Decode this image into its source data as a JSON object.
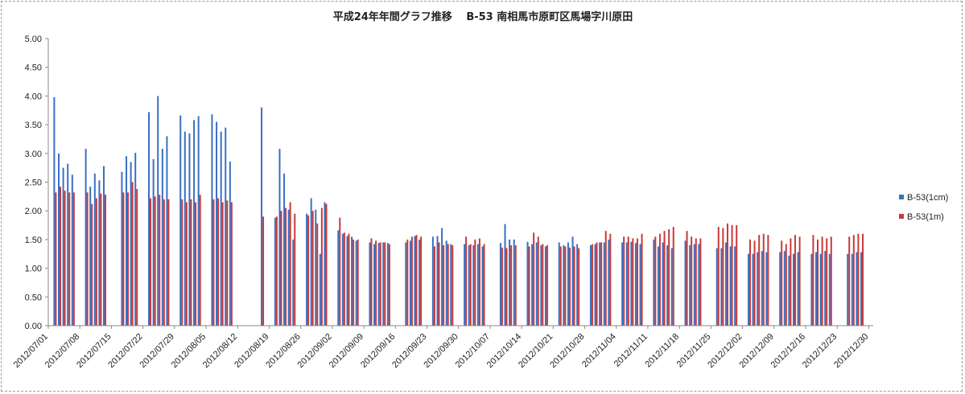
{
  "chart_data": {
    "type": "bar",
    "title": "平成24年年間グラフ推移　 B-53 南相馬市原町区馬場字川原田",
    "xlabel": "",
    "ylabel": "",
    "ylim": [
      0,
      5
    ],
    "yticks": [
      "0.00",
      "0.50",
      "1.00",
      "1.50",
      "2.00",
      "2.50",
      "3.00",
      "3.50",
      "4.00",
      "4.50",
      "5.00"
    ],
    "x_start": "2012-07-01",
    "x_end": "2012-12-31",
    "xtick_labels": [
      "2012/07/01",
      "2012/07/08",
      "2012/07/15",
      "2012/07/22",
      "2012/07/29",
      "2012/08/05",
      "2012/08/12",
      "2012/08/19",
      "2012/08/26",
      "2012/09/02",
      "2012/09/09",
      "2012/09/16",
      "2012/09/23",
      "2012/09/30",
      "2012/10/07",
      "2012/10/14",
      "2012/10/21",
      "2012/10/28",
      "2012/11/04",
      "2012/11/11",
      "2012/11/18",
      "2012/11/25",
      "2012/12/02",
      "2012/12/09",
      "2012/12/16",
      "2012/12/23",
      "2012/12/30"
    ],
    "grid": false,
    "legend_position": "right",
    "series": [
      {
        "name": "B-53(1cm)",
        "color": "#3a70c2",
        "points": [
          [
            "2012-07-02",
            3.98
          ],
          [
            "2012-07-03",
            3.0
          ],
          [
            "2012-07-04",
            2.75
          ],
          [
            "2012-07-05",
            2.82
          ],
          [
            "2012-07-06",
            2.63
          ],
          [
            "2012-07-09",
            3.08
          ],
          [
            "2012-07-10",
            2.42
          ],
          [
            "2012-07-11",
            2.65
          ],
          [
            "2012-07-12",
            2.53
          ],
          [
            "2012-07-13",
            2.78
          ],
          [
            "2012-07-17",
            2.68
          ],
          [
            "2012-07-18",
            2.95
          ],
          [
            "2012-07-19",
            2.85
          ],
          [
            "2012-07-20",
            3.01
          ],
          [
            "2012-07-23",
            3.72
          ],
          [
            "2012-07-24",
            2.9
          ],
          [
            "2012-07-25",
            4.0
          ],
          [
            "2012-07-26",
            3.08
          ],
          [
            "2012-07-27",
            3.3
          ],
          [
            "2012-07-30",
            3.66
          ],
          [
            "2012-07-31",
            3.38
          ],
          [
            "2012-08-01",
            3.35
          ],
          [
            "2012-08-02",
            3.58
          ],
          [
            "2012-08-03",
            3.65
          ],
          [
            "2012-08-06",
            3.68
          ],
          [
            "2012-08-07",
            3.55
          ],
          [
            "2012-08-08",
            3.38
          ],
          [
            "2012-08-09",
            3.45
          ],
          [
            "2012-08-10",
            2.86
          ],
          [
            "2012-08-17",
            3.8
          ],
          [
            "2012-08-20",
            1.88
          ],
          [
            "2012-08-21",
            3.08
          ],
          [
            "2012-08-22",
            2.65
          ],
          [
            "2012-08-23",
            2.02
          ],
          [
            "2012-08-24",
            1.5
          ],
          [
            "2012-08-27",
            1.95
          ],
          [
            "2012-08-28",
            2.22
          ],
          [
            "2012-08-29",
            2.02
          ],
          [
            "2012-08-30",
            1.25
          ],
          [
            "2012-08-31",
            2.15
          ],
          [
            "2012-09-03",
            1.66
          ],
          [
            "2012-09-04",
            1.6
          ],
          [
            "2012-09-05",
            1.56
          ],
          [
            "2012-09-06",
            1.55
          ],
          [
            "2012-09-07",
            1.48
          ],
          [
            "2012-09-10",
            1.45
          ],
          [
            "2012-09-11",
            1.42
          ],
          [
            "2012-09-12",
            1.44
          ],
          [
            "2012-09-13",
            1.45
          ],
          [
            "2012-09-14",
            1.44
          ],
          [
            "2012-09-18",
            1.45
          ],
          [
            "2012-09-19",
            1.48
          ],
          [
            "2012-09-20",
            1.56
          ],
          [
            "2012-09-21",
            1.5
          ],
          [
            "2012-09-24",
            1.55
          ],
          [
            "2012-09-25",
            1.56
          ],
          [
            "2012-09-26",
            1.7
          ],
          [
            "2012-09-27",
            1.48
          ],
          [
            "2012-09-28",
            1.42
          ],
          [
            "2012-10-01",
            1.42
          ],
          [
            "2012-10-02",
            1.4
          ],
          [
            "2012-10-03",
            1.4
          ],
          [
            "2012-10-04",
            1.42
          ],
          [
            "2012-10-05",
            1.38
          ],
          [
            "2012-10-09",
            1.44
          ],
          [
            "2012-10-10",
            1.77
          ],
          [
            "2012-10-11",
            1.5
          ],
          [
            "2012-10-12",
            1.5
          ],
          [
            "2012-10-15",
            1.46
          ],
          [
            "2012-10-16",
            1.42
          ],
          [
            "2012-10-17",
            1.45
          ],
          [
            "2012-10-18",
            1.4
          ],
          [
            "2012-10-19",
            1.38
          ],
          [
            "2012-10-22",
            1.45
          ],
          [
            "2012-10-23",
            1.4
          ],
          [
            "2012-10-24",
            1.45
          ],
          [
            "2012-10-25",
            1.55
          ],
          [
            "2012-10-26",
            1.42
          ],
          [
            "2012-10-29",
            1.4
          ],
          [
            "2012-10-30",
            1.42
          ],
          [
            "2012-10-31",
            1.45
          ],
          [
            "2012-11-01",
            1.45
          ],
          [
            "2012-11-02",
            1.5
          ],
          [
            "2012-11-05",
            1.45
          ],
          [
            "2012-11-06",
            1.45
          ],
          [
            "2012-11-07",
            1.46
          ],
          [
            "2012-11-08",
            1.44
          ],
          [
            "2012-11-09",
            1.42
          ],
          [
            "2012-11-12",
            1.5
          ],
          [
            "2012-11-13",
            1.38
          ],
          [
            "2012-11-14",
            1.45
          ],
          [
            "2012-11-15",
            1.4
          ],
          [
            "2012-11-16",
            1.35
          ],
          [
            "2012-11-19",
            1.48
          ],
          [
            "2012-11-20",
            1.4
          ],
          [
            "2012-11-21",
            1.42
          ],
          [
            "2012-11-22",
            1.42
          ],
          [
            "2012-11-26",
            1.35
          ],
          [
            "2012-11-27",
            1.35
          ],
          [
            "2012-11-28",
            1.45
          ],
          [
            "2012-11-29",
            1.38
          ],
          [
            "2012-11-30",
            1.38
          ],
          [
            "2012-12-03",
            1.25
          ],
          [
            "2012-12-04",
            1.25
          ],
          [
            "2012-12-05",
            1.28
          ],
          [
            "2012-12-06",
            1.3
          ],
          [
            "2012-12-07",
            1.28
          ],
          [
            "2012-12-10",
            1.28
          ],
          [
            "2012-12-11",
            1.3
          ],
          [
            "2012-12-12",
            1.22
          ],
          [
            "2012-12-13",
            1.25
          ],
          [
            "2012-12-14",
            1.28
          ],
          [
            "2012-12-17",
            1.25
          ],
          [
            "2012-12-18",
            1.28
          ],
          [
            "2012-12-19",
            1.25
          ],
          [
            "2012-12-20",
            1.3
          ],
          [
            "2012-12-21",
            1.25
          ],
          [
            "2012-12-25",
            1.25
          ],
          [
            "2012-12-26",
            1.25
          ],
          [
            "2012-12-27",
            1.28
          ],
          [
            "2012-12-28",
            1.28
          ]
        ]
      },
      {
        "name": "B-53(1m)",
        "color": "#c83a3a",
        "points": [
          [
            "2012-07-02",
            2.32
          ],
          [
            "2012-07-03",
            2.42
          ],
          [
            "2012-07-04",
            2.35
          ],
          [
            "2012-07-05",
            2.32
          ],
          [
            "2012-07-06",
            2.32
          ],
          [
            "2012-07-09",
            2.32
          ],
          [
            "2012-07-10",
            2.12
          ],
          [
            "2012-07-11",
            2.22
          ],
          [
            "2012-07-12",
            2.3
          ],
          [
            "2012-07-13",
            2.28
          ],
          [
            "2012-07-17",
            2.32
          ],
          [
            "2012-07-18",
            2.32
          ],
          [
            "2012-07-19",
            2.5
          ],
          [
            "2012-07-20",
            2.38
          ],
          [
            "2012-07-23",
            2.22
          ],
          [
            "2012-07-24",
            2.25
          ],
          [
            "2012-07-25",
            2.28
          ],
          [
            "2012-07-26",
            2.2
          ],
          [
            "2012-07-27",
            2.2
          ],
          [
            "2012-07-30",
            2.2
          ],
          [
            "2012-07-31",
            2.15
          ],
          [
            "2012-08-01",
            2.2
          ],
          [
            "2012-08-02",
            2.15
          ],
          [
            "2012-08-03",
            2.28
          ],
          [
            "2012-08-06",
            2.2
          ],
          [
            "2012-08-07",
            2.22
          ],
          [
            "2012-08-08",
            2.15
          ],
          [
            "2012-08-09",
            2.18
          ],
          [
            "2012-08-10",
            2.15
          ],
          [
            "2012-08-17",
            1.9
          ],
          [
            "2012-08-20",
            1.9
          ],
          [
            "2012-08-21",
            2.0
          ],
          [
            "2012-08-22",
            2.05
          ],
          [
            "2012-08-23",
            2.15
          ],
          [
            "2012-08-24",
            1.95
          ],
          [
            "2012-08-27",
            1.92
          ],
          [
            "2012-08-28",
            2.0
          ],
          [
            "2012-08-29",
            1.78
          ],
          [
            "2012-08-30",
            2.05
          ],
          [
            "2012-08-31",
            2.12
          ],
          [
            "2012-09-03",
            1.88
          ],
          [
            "2012-09-04",
            1.62
          ],
          [
            "2012-09-05",
            1.6
          ],
          [
            "2012-09-06",
            1.5
          ],
          [
            "2012-09-07",
            1.5
          ],
          [
            "2012-09-10",
            1.52
          ],
          [
            "2012-09-11",
            1.48
          ],
          [
            "2012-09-12",
            1.45
          ],
          [
            "2012-09-13",
            1.45
          ],
          [
            "2012-09-14",
            1.42
          ],
          [
            "2012-09-18",
            1.5
          ],
          [
            "2012-09-19",
            1.55
          ],
          [
            "2012-09-20",
            1.58
          ],
          [
            "2012-09-21",
            1.55
          ],
          [
            "2012-09-24",
            1.38
          ],
          [
            "2012-09-25",
            1.45
          ],
          [
            "2012-09-26",
            1.4
          ],
          [
            "2012-09-27",
            1.42
          ],
          [
            "2012-09-28",
            1.4
          ],
          [
            "2012-10-01",
            1.55
          ],
          [
            "2012-10-02",
            1.42
          ],
          [
            "2012-10-03",
            1.5
          ],
          [
            "2012-10-04",
            1.52
          ],
          [
            "2012-10-05",
            1.42
          ],
          [
            "2012-10-09",
            1.36
          ],
          [
            "2012-10-10",
            1.35
          ],
          [
            "2012-10-11",
            1.4
          ],
          [
            "2012-10-12",
            1.4
          ],
          [
            "2012-10-15",
            1.38
          ],
          [
            "2012-10-16",
            1.62
          ],
          [
            "2012-10-17",
            1.55
          ],
          [
            "2012-10-18",
            1.42
          ],
          [
            "2012-10-19",
            1.4
          ],
          [
            "2012-10-22",
            1.38
          ],
          [
            "2012-10-23",
            1.38
          ],
          [
            "2012-10-24",
            1.36
          ],
          [
            "2012-10-25",
            1.38
          ],
          [
            "2012-10-26",
            1.35
          ],
          [
            "2012-10-29",
            1.42
          ],
          [
            "2012-10-30",
            1.45
          ],
          [
            "2012-10-31",
            1.45
          ],
          [
            "2012-11-01",
            1.65
          ],
          [
            "2012-11-02",
            1.6
          ],
          [
            "2012-11-05",
            1.55
          ],
          [
            "2012-11-06",
            1.55
          ],
          [
            "2012-11-07",
            1.52
          ],
          [
            "2012-11-08",
            1.52
          ],
          [
            "2012-11-09",
            1.6
          ],
          [
            "2012-11-12",
            1.55
          ],
          [
            "2012-11-13",
            1.6
          ],
          [
            "2012-11-14",
            1.65
          ],
          [
            "2012-11-15",
            1.68
          ],
          [
            "2012-11-16",
            1.72
          ],
          [
            "2012-11-19",
            1.65
          ],
          [
            "2012-11-20",
            1.55
          ],
          [
            "2012-11-21",
            1.52
          ],
          [
            "2012-11-22",
            1.52
          ],
          [
            "2012-11-26",
            1.72
          ],
          [
            "2012-11-27",
            1.7
          ],
          [
            "2012-11-28",
            1.78
          ],
          [
            "2012-11-29",
            1.75
          ],
          [
            "2012-11-30",
            1.75
          ],
          [
            "2012-12-03",
            1.5
          ],
          [
            "2012-12-04",
            1.48
          ],
          [
            "2012-12-05",
            1.58
          ],
          [
            "2012-12-06",
            1.6
          ],
          [
            "2012-12-07",
            1.58
          ],
          [
            "2012-12-10",
            1.48
          ],
          [
            "2012-12-11",
            1.42
          ],
          [
            "2012-12-12",
            1.52
          ],
          [
            "2012-12-13",
            1.58
          ],
          [
            "2012-12-14",
            1.55
          ],
          [
            "2012-12-17",
            1.58
          ],
          [
            "2012-12-18",
            1.5
          ],
          [
            "2012-12-19",
            1.55
          ],
          [
            "2012-12-20",
            1.52
          ],
          [
            "2012-12-21",
            1.55
          ],
          [
            "2012-12-25",
            1.55
          ],
          [
            "2012-12-26",
            1.58
          ],
          [
            "2012-12-27",
            1.6
          ],
          [
            "2012-12-28",
            1.6
          ]
        ]
      }
    ]
  }
}
